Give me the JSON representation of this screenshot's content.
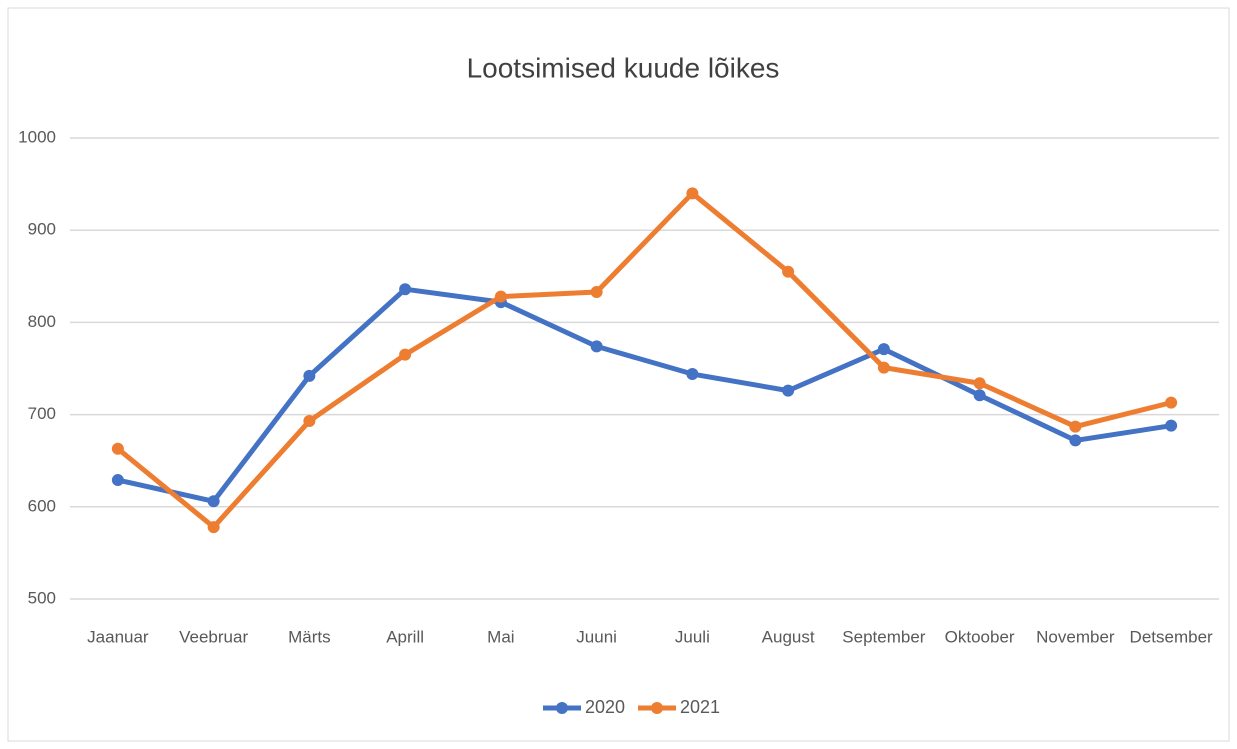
{
  "chart_data": {
    "type": "line",
    "title": "Lootsimised kuude lõikes",
    "categories": [
      "Jaanuar",
      "Veebruar",
      "Märts",
      "Aprill",
      "Mai",
      "Juuni",
      "Juuli",
      "August",
      "September",
      "Oktoober",
      "November",
      "Detsember"
    ],
    "series": [
      {
        "name": "2020",
        "color": "#4472c4",
        "values": [
          629,
          606,
          742,
          836,
          822,
          774,
          744,
          726,
          771,
          721,
          672,
          688
        ]
      },
      {
        "name": "2021",
        "color": "#ed7d31",
        "values": [
          663,
          578,
          693,
          765,
          828,
          833,
          940,
          855,
          751,
          734,
          687,
          713
        ]
      }
    ],
    "ylim": [
      500,
      1000
    ],
    "yticks": [
      500,
      600,
      700,
      800,
      900,
      1000
    ],
    "grid": true,
    "legend": "bottom"
  }
}
